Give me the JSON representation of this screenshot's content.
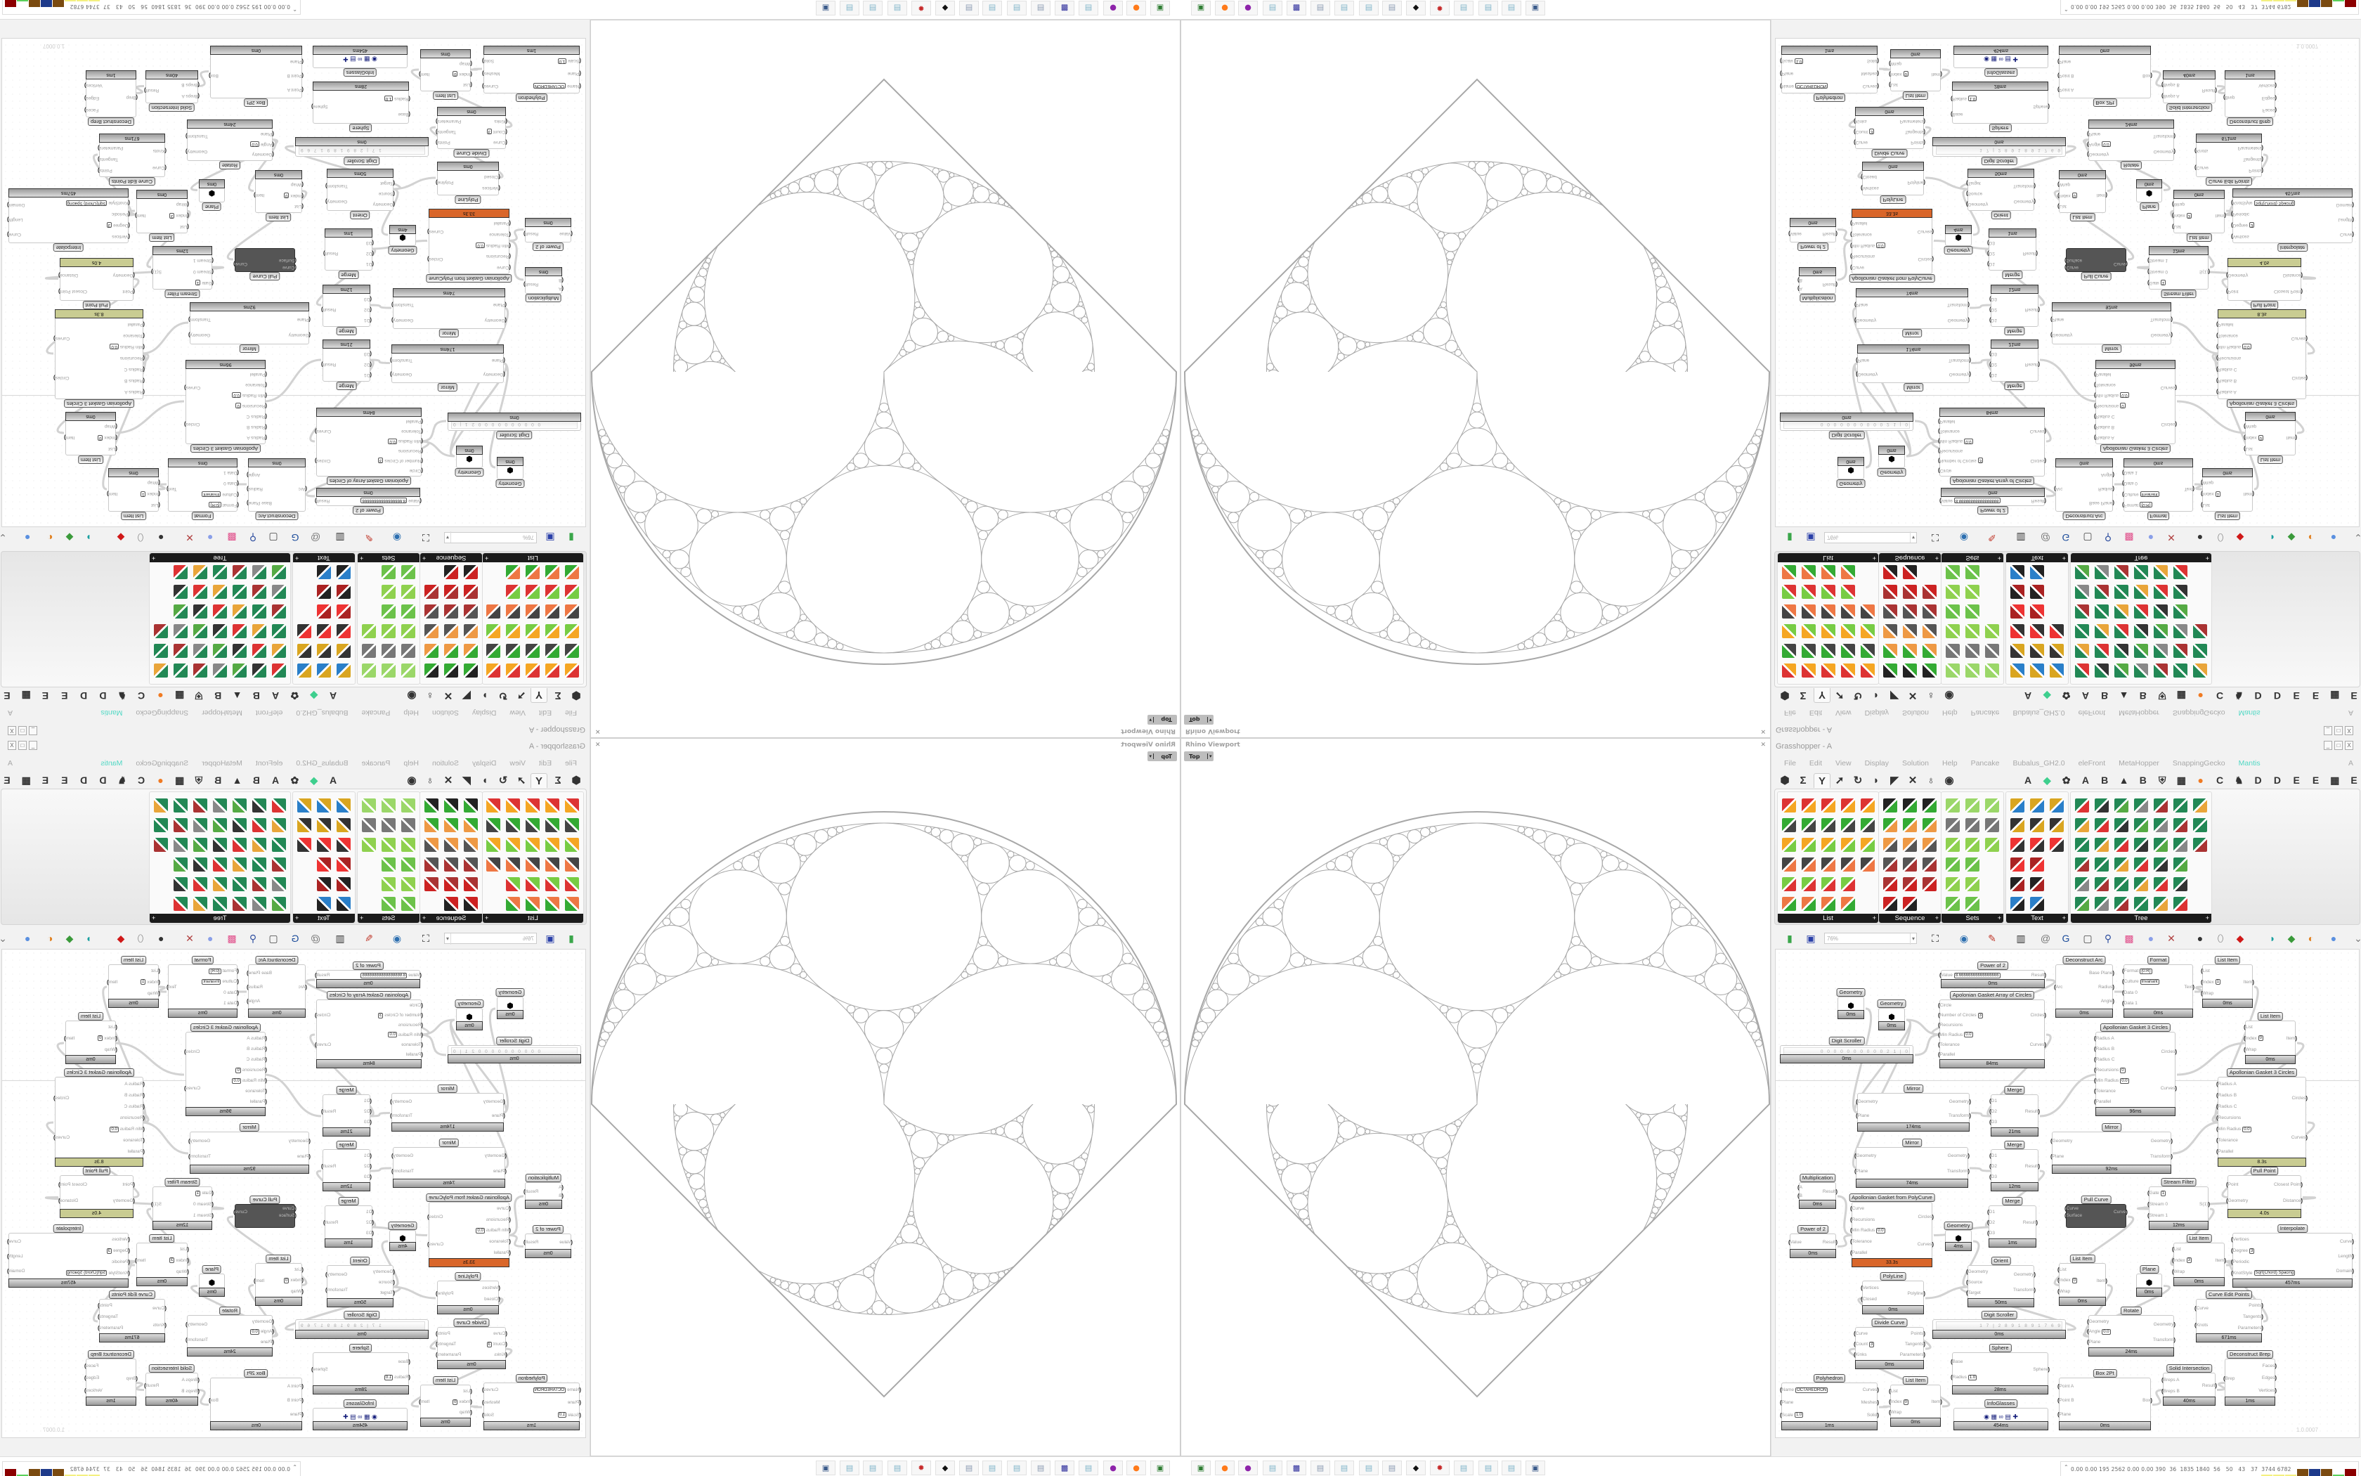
{
  "viewport": {
    "title": "Rhino Viewport",
    "view": "Top",
    "view_arrow": "▾",
    "close_glyph": "✕",
    "line_color": "#a8a8a8"
  },
  "taskbar": {
    "icons": [
      {
        "name": "terminal-app-icon",
        "glyph": "▣",
        "color": "#2e7d32"
      },
      {
        "name": "firefox-icon",
        "glyph": "●",
        "color": "#ff7a1a"
      },
      {
        "name": "purple-app-icon",
        "glyph": "●",
        "color": "#8e24aa"
      },
      {
        "name": "notepad-icon",
        "glyph": "▤",
        "color": "#7fb3c8"
      },
      {
        "name": "floppy-64-icon",
        "glyph": "▩",
        "color": "#2a2a9a"
      },
      {
        "name": "document-printer-icon",
        "glyph": "▤",
        "color": "#8a9ab0"
      },
      {
        "name": "notepad-icon",
        "glyph": "▤",
        "color": "#7fb3c8"
      },
      {
        "name": "notepad-icon",
        "glyph": "▤",
        "color": "#7fb3c8"
      },
      {
        "name": "document-printer-icon",
        "glyph": "▤",
        "color": "#8a9ab0"
      },
      {
        "name": "rhino-icon",
        "glyph": "◆",
        "color": "#111111"
      },
      {
        "name": "red-gear-icon",
        "glyph": "✹",
        "color": "#c62828"
      },
      {
        "name": "notepad-icon",
        "glyph": "▤",
        "color": "#7fb3c8"
      },
      {
        "name": "notepad-icon",
        "glyph": "▤",
        "color": "#7fb3c8"
      },
      {
        "name": "notepad-icon",
        "glyph": "▤",
        "color": "#7fb3c8"
      },
      {
        "name": "remote-desktop-icon",
        "glyph": "▣",
        "color": "#3a5a8a"
      }
    ]
  },
  "grasshopper": {
    "title": "Grasshopper - A",
    "window_buttons": [
      "_",
      "□",
      "X"
    ],
    "menu": [
      "File",
      "Edit",
      "View",
      "Display",
      "Solution",
      "Help",
      "Pancake",
      "Bubalus_GH2.0",
      "eleFront",
      "MetaHopper",
      "SnappingGecko",
      "Mantis"
    ],
    "menu_right": "A",
    "menu_accent": "#4fd8c4",
    "tab_icons": [
      {
        "name": "params-tab-icon",
        "glyph": "⬢"
      },
      {
        "name": "maths-tab-icon",
        "glyph": "Σ"
      },
      {
        "name": "sets-tab-icon",
        "glyph": "Y",
        "active": true
      },
      {
        "name": "vector-tab-icon",
        "glyph": "➚"
      },
      {
        "name": "curve-tab-icon",
        "glyph": "↻"
      },
      {
        "name": "surface-tab-icon",
        "glyph": "◗"
      },
      {
        "name": "mesh-tab-icon",
        "glyph": "◤"
      },
      {
        "name": "intersect-tab-icon",
        "glyph": "✕"
      },
      {
        "name": "transform-tab-icon",
        "glyph": "♁"
      },
      {
        "name": "display-tab-icon",
        "glyph": "◉"
      }
    ],
    "plugin_tabs": [
      {
        "name": "plugin-tab-a",
        "glyph": "A"
      },
      {
        "name": "leaf-tab-icon",
        "glyph": "◆",
        "color": "#3ecf8e"
      },
      {
        "name": "puzzle-tab-icon",
        "glyph": "✿"
      },
      {
        "name": "plugin-tab-a2",
        "glyph": "A"
      },
      {
        "name": "plugin-tab-b",
        "glyph": "B"
      },
      {
        "name": "mountain-tab-icon",
        "glyph": "▲"
      },
      {
        "name": "plugin-tab-b2",
        "glyph": "B"
      },
      {
        "name": "shield-tab-icon",
        "glyph": "⛨"
      },
      {
        "name": "grid-tab-icon",
        "glyph": "▦"
      },
      {
        "name": "orange-circle-tab-icon",
        "glyph": "●",
        "color": "#f07a22"
      },
      {
        "name": "plugin-tab-c",
        "glyph": "C"
      },
      {
        "name": "rooster-tab-icon",
        "glyph": "♞"
      },
      {
        "name": "plugin-tab-d",
        "glyph": "D"
      },
      {
        "name": "plugin-tab-d2",
        "glyph": "D"
      },
      {
        "name": "plugin-tab-e",
        "glyph": "E"
      },
      {
        "name": "plugin-tab-e2",
        "glyph": "E"
      },
      {
        "name": "chip-tab-icon",
        "glyph": "▦"
      },
      {
        "name": "plugin-tab-e3",
        "glyph": "E"
      }
    ],
    "panels": [
      {
        "label": "List",
        "expand": "+"
      },
      {
        "label": "Sequence",
        "expand": "+"
      },
      {
        "label": "Sets",
        "expand": "+"
      },
      {
        "label": "Text",
        "expand": "+"
      },
      {
        "label": "Tree",
        "expand": "+"
      }
    ],
    "zoom": "76%",
    "zoom_arrow": "▾",
    "toolbar_icons": [
      {
        "name": "new-file-icon",
        "glyph": "▮",
        "color": "#3aa64a"
      },
      {
        "name": "save-icon",
        "glyph": "▣",
        "color": "#2a3fa8"
      },
      {
        "name": "zoom-extents-icon",
        "glyph": "⛶",
        "color": "#222"
      },
      {
        "name": "preview-eye-icon",
        "glyph": "◉",
        "color": "#2c6fb0"
      },
      {
        "name": "sketch-pen-icon",
        "glyph": "✎",
        "color": "#c0392b"
      },
      {
        "name": "plugin-icon",
        "glyph": "▥",
        "color": "#333"
      },
      {
        "name": "email-icon",
        "glyph": "@",
        "color": "#777"
      },
      {
        "name": "gha-icon",
        "glyph": "G",
        "color": "#1b4b9a"
      },
      {
        "name": "window-icon",
        "glyph": "▢",
        "color": "#444"
      },
      {
        "name": "search-icon",
        "glyph": "⚲",
        "color": "#3050a0"
      },
      {
        "name": "package-icon",
        "glyph": "▩",
        "color": "#e04e8a"
      },
      {
        "name": "bulb-icon",
        "glyph": "●",
        "color": "#8a9fe8"
      },
      {
        "name": "wires-icon",
        "glyph": "✕",
        "color": "#b04040"
      },
      {
        "name": "bubble-icon",
        "glyph": "●",
        "color": "#333"
      },
      {
        "name": "cylinder-icon",
        "glyph": "⬯",
        "color": "#777"
      },
      {
        "name": "red-gem-icon",
        "glyph": "◆",
        "color": "#d01818"
      },
      {
        "name": "teal-shape-icon",
        "glyph": "◗",
        "color": "#1aa0a0"
      },
      {
        "name": "green-shape-icon",
        "glyph": "◆",
        "color": "#3a9a3a"
      },
      {
        "name": "orange-sphere-icon",
        "glyph": "◐",
        "color": "#e08020"
      },
      {
        "name": "blue-sphere-icon",
        "glyph": "●",
        "color": "#5a90e0"
      },
      {
        "name": "overflow-chevron-icon",
        "glyph": "⌄",
        "color": "#777"
      }
    ],
    "canvas_version": "1.0.0007",
    "status_values": "0.00 0.00 195 2562 0.00 0.00 390  36  1835 1840  56   50   43   37  3744 6782",
    "status_glyph": "⌃",
    "status_bar_colors": [
      "#f4f080",
      "#f4f080",
      "#f4f080",
      "#7a4a10",
      "#1e3a8a",
      "#7a4a10",
      "#5ad05a",
      "#8b0000"
    ],
    "slow_bar_color": "#d9662a",
    "warn_bar_color": "#c9cc92",
    "nodes": [
      {
        "title": "Power of 2",
        "inputs": [
          "Value"
        ],
        "outputs": [
          "Result"
        ],
        "values": {
          "Value": "8.66666666666666666"
        },
        "time": "0ms"
      },
      {
        "title": "Apolonian Gasket Array of Circles",
        "inputs": [
          "Circle",
          "Number of Circles",
          "Recursions",
          "Min Radius",
          "Tolerance",
          "Parallel"
        ],
        "outputs": [
          "Circles",
          "Curves"
        ],
        "values": {
          "Number of Circles": "3",
          "Min Radius": "0.0"
        },
        "time": "84ms"
      },
      {
        "title": "Geometry",
        "kind": "param",
        "inputs": [],
        "outputs": [],
        "time": "0ms"
      },
      {
        "title": "Geometry",
        "kind": "param",
        "inputs": [],
        "outputs": [],
        "time": "0ms"
      },
      {
        "title": "Digit Scroller",
        "kind": "scroller",
        "digits": "0 0 0 0 0 0 0 0 0 0 2 1 | 0",
        "inputs": [],
        "outputs": [],
        "time": "0ms"
      },
      {
        "title": "Mirror",
        "inputs": [
          "Geometry",
          "Plane"
        ],
        "outputs": [
          "Geometry",
          "Transform"
        ],
        "time": "174ms"
      },
      {
        "title": "Merge",
        "inputs": [
          "D1",
          "D2",
          "D3"
        ],
        "outputs": [
          "Result"
        ],
        "time": "21ms"
      },
      {
        "title": "Mirror",
        "inputs": [
          "Geometry",
          "Plane"
        ],
        "outputs": [
          "Geometry",
          "Transform"
        ],
        "time": "74ms"
      },
      {
        "title": "Merge",
        "inputs": [
          "D1",
          "D2",
          "D3"
        ],
        "outputs": [
          "Result"
        ],
        "time": "12ms"
      },
      {
        "title": "Multiplication",
        "inputs": [
          "A",
          "B"
        ],
        "outputs": [
          "Result"
        ],
        "time": "0ms"
      },
      {
        "title": "Deconstruct Arc",
        "inputs": [
          "Arc"
        ],
        "outputs": [
          "Base Plane",
          "Radius",
          "Angle"
        ],
        "time": "0ms"
      },
      {
        "title": "Format",
        "inputs": [
          "Format",
          "Culture",
          "Data 0",
          "Data 1"
        ],
        "outputs": [
          "Text"
        ],
        "values": {
          "Format": "{0:R}",
          "Culture": "Invariant"
        },
        "time": "0ms"
      },
      {
        "title": "List Item",
        "inputs": [
          "List",
          "Index",
          "Wrap"
        ],
        "outputs": [
          "Item"
        ],
        "values": {
          "Index": "1"
        },
        "time": "0ms"
      },
      {
        "title": "List Item",
        "inputs": [
          "List",
          "Index",
          "Wrap"
        ],
        "outputs": [
          "Item"
        ],
        "values": {
          "Index": "0"
        },
        "time": "0ms"
      },
      {
        "title": "Apollonian Gasket 3 Circles",
        "inputs": [
          "Radius A",
          "Radius B",
          "Radius C",
          "Recursions",
          "Min Radius",
          "Tolerance",
          "Parallel"
        ],
        "outputs": [
          "Circles",
          "Curves"
        ],
        "values": {
          "Recursions": "0",
          "Min Radius": "0.0"
        },
        "time": "96ms"
      },
      {
        "title": "Apollonian Gasket 3 Circles",
        "inputs": [
          "Radius A",
          "Radius B",
          "Radius C",
          "Recursions",
          "Min Radius",
          "Tolerance",
          "Parallel"
        ],
        "outputs": [
          "Circles",
          "Curves"
        ],
        "values": {
          "Min Radius": "0.0"
        },
        "time": "8.3s",
        "bar": "warn"
      },
      {
        "title": "Mirror",
        "inputs": [
          "Geometry",
          "Plane"
        ],
        "outputs": [
          "Geometry",
          "Transform"
        ],
        "time": "92ms"
      },
      {
        "title": "Pull Point",
        "inputs": [
          "Point",
          "Geometry"
        ],
        "outputs": [
          "Closest Point",
          "Distance"
        ],
        "time": "4.0s",
        "bar": "warn"
      },
      {
        "title": "Stream Filter",
        "inputs": [
          "Gate",
          "Stream 0",
          "Stream 1"
        ],
        "outputs": [
          "S(1)"
        ],
        "values": {
          "Gate": "1"
        },
        "time": "12ms"
      },
      {
        "title": "Pull Curve",
        "kind": "dark",
        "inputs": [
          "Curve",
          "Surface"
        ],
        "outputs": [
          "Curve"
        ],
        "time": ""
      },
      {
        "title": "Apollonian Gasket from PolyCurve",
        "inputs": [
          "Curve",
          "Recursions",
          "Min Radius",
          "Tolerance",
          "Parallel"
        ],
        "outputs": [
          "Circles",
          "Curves"
        ],
        "values": {
          "Min Radius": "0.0"
        },
        "time": "33.3s",
        "bar": "slow"
      },
      {
        "title": "Power of 2",
        "inputs": [
          "Value"
        ],
        "outputs": [
          "Result"
        ],
        "time": "0ms"
      },
      {
        "title": "Geometry",
        "kind": "param",
        "inputs": [],
        "outputs": [],
        "time": "4ms"
      },
      {
        "title": "Merge",
        "inputs": [
          "D1",
          "D2",
          "D3"
        ],
        "outputs": [
          "Result"
        ],
        "time": "1ms"
      },
      {
        "title": "Orient",
        "inputs": [
          "Geometry",
          "Source",
          "Target"
        ],
        "outputs": [
          "Geometry",
          "Transform"
        ],
        "time": "50ms"
      },
      {
        "title": "PolyLine",
        "inputs": [
          "Vertices",
          "Closed"
        ],
        "outputs": [
          "Polyline"
        ],
        "time": "0ms"
      },
      {
        "title": "Digit Scroller",
        "kind": "scroller",
        "digits": "1 7 | 2 8 9 1 8 9 1 7 6 9",
        "inputs": [],
        "outputs": [],
        "time": "0ms"
      },
      {
        "title": "Divide Curve",
        "inputs": [
          "Curve",
          "Count",
          "Kinks"
        ],
        "outputs": [
          "Points",
          "Tangents",
          "Parameters"
        ],
        "values": {
          "Count": "3"
        },
        "time": "0ms"
      },
      {
        "title": "Sphere",
        "inputs": [
          "Base",
          "Radius"
        ],
        "outputs": [
          "Sphere"
        ],
        "values": {
          "Radius": "1.0"
        },
        "time": "28ms"
      },
      {
        "title": "Polyhedron",
        "inputs": [
          "Name",
          "Plane",
          "Scale"
        ],
        "outputs": [
          "Curves",
          "Meshes",
          "Solid"
        ],
        "values": {
          "Name": "OCTAHEDRON",
          "Scale": "1.0"
        },
        "time": "1ms"
      },
      {
        "title": "List Item",
        "inputs": [
          "List",
          "Index",
          "Wrap"
        ],
        "outputs": [
          "Item"
        ],
        "values": {
          "Index": "0"
        },
        "time": "0ms"
      },
      {
        "title": "InfoGlasses",
        "kind": "param",
        "inputs": [],
        "outputs": [],
        "time": "454ms"
      },
      {
        "title": "Interpolate",
        "inputs": [
          "Vertices",
          "Degree",
          "Periodic",
          "KnotStyle"
        ],
        "outputs": [
          "Curve",
          "Length",
          "Domain"
        ],
        "values": {
          "Degree": "3",
          "KnotStyle": "Sqrt(Chord) Spacing"
        },
        "time": "457ms"
      },
      {
        "title": "List Item",
        "inputs": [
          "List",
          "Index",
          "Wrap"
        ],
        "outputs": [
          "Item"
        ],
        "values": {
          "Index": "3"
        },
        "time": "0ms"
      },
      {
        "title": "List Item",
        "inputs": [
          "List",
          "Index",
          "Wrap"
        ],
        "outputs": [
          "Item"
        ],
        "values": {
          "Index": "0"
        },
        "time": "0ms"
      },
      {
        "title": "Plane",
        "kind": "param",
        "inputs": [],
        "outputs": [],
        "time": "0ms"
      },
      {
        "title": "Curve Edit Points",
        "inputs": [
          "Curve",
          "Knots"
        ],
        "outputs": [
          "Points",
          "Tangents",
          "Parameters"
        ],
        "time": "671ms"
      },
      {
        "title": "Rotate",
        "inputs": [
          "Geometry",
          "Angle",
          "Plane"
        ],
        "outputs": [
          "Geometry",
          "Transform"
        ],
        "values": {
          "Angle": "0.0"
        },
        "time": "24ms"
      },
      {
        "title": "Deconstruct Brep",
        "inputs": [
          "Brep"
        ],
        "outputs": [
          "Faces",
          "Edges",
          "Vertices"
        ],
        "time": "1ms"
      },
      {
        "title": "Solid Intersection",
        "inputs": [
          "Breps A",
          "Breps B"
        ],
        "outputs": [
          "Result"
        ],
        "time": "40ms"
      },
      {
        "title": "Box 2Pt",
        "inputs": [
          "Point A",
          "Point B",
          "Plane"
        ],
        "outputs": [
          "Box"
        ],
        "time": "0ms"
      }
    ]
  }
}
